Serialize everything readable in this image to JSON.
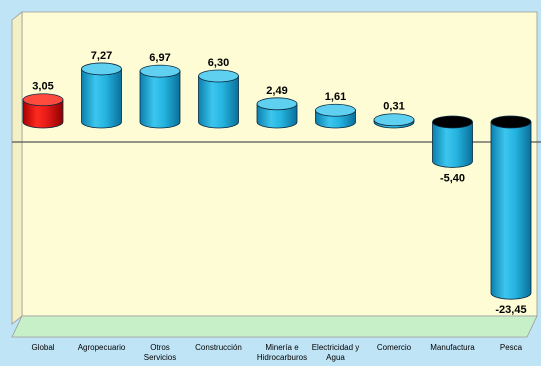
{
  "chart_data": {
    "type": "bar",
    "style": "3d-cylinder",
    "categories": [
      [
        "Global"
      ],
      [
        "Agropecuario"
      ],
      [
        "Otros",
        "Servicios"
      ],
      [
        "Construcción"
      ],
      [
        "Minería e",
        "Hidrocarburos"
      ],
      [
        "Electricidad y",
        "Agua"
      ],
      [
        "Comercio"
      ],
      [
        "Manufactura"
      ],
      [
        "Pesca"
      ]
    ],
    "values": [
      3.05,
      7.27,
      6.97,
      6.3,
      2.49,
      1.61,
      0.31,
      -5.4,
      -23.45
    ],
    "value_labels": [
      "3,05",
      "7,27",
      "6,97",
      "6,30",
      "2,49",
      "1,61",
      "0,31",
      "-5,40",
      "-23,45"
    ],
    "ylim": [
      -25,
      10
    ],
    "grid": false,
    "colors": {
      "background": "#bfe4f6",
      "wall": "#fdfcd5",
      "floor": "#c8f0c8",
      "highlight_bar": "#e41b17",
      "bar": "#25b4e0",
      "bar_top": "#5fd0f0",
      "negative_top": "#000000"
    }
  }
}
